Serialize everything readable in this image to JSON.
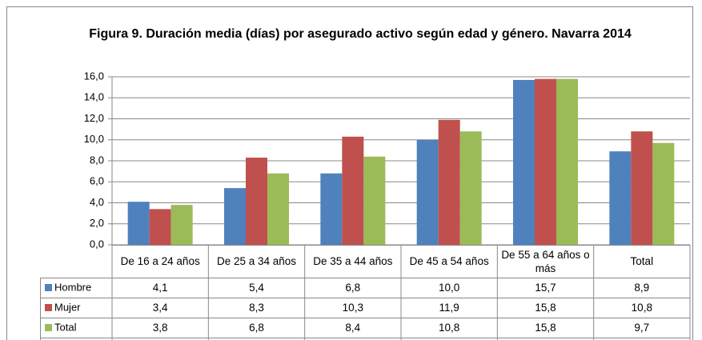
{
  "chart_data": {
    "type": "bar",
    "title": "Figura 9. Duración media (días) por asegurado activo según edad y género. Navarra 2014",
    "categories": [
      "De 16 a 24 años",
      "De 25 a 34 años",
      "De 35 a 44 años",
      "De 45 a 54 años",
      "De 55 a 64 años o más",
      "Total"
    ],
    "series": [
      {
        "name": "Hombre",
        "color": "#4f81bd",
        "values": [
          4.1,
          5.4,
          6.8,
          10.0,
          15.7,
          8.9
        ],
        "value_labels": [
          "4,1",
          "5,4",
          "6,8",
          "10,0",
          "15,7",
          "8,9"
        ]
      },
      {
        "name": "Mujer",
        "color": "#c0504d",
        "values": [
          3.4,
          8.3,
          10.3,
          11.9,
          15.8,
          10.8
        ],
        "value_labels": [
          "3,4",
          "8,3",
          "10,3",
          "11,9",
          "15,8",
          "10,8"
        ]
      },
      {
        "name": "Total",
        "color": "#9bbb59",
        "values": [
          3.8,
          6.8,
          8.4,
          10.8,
          15.8,
          9.7
        ],
        "value_labels": [
          "3,8",
          "6,8",
          "8,4",
          "10,8",
          "15,8",
          "9,7"
        ]
      }
    ],
    "ylim": [
      0,
      16
    ],
    "yticks": [
      {
        "value": 0,
        "label": "0,0"
      },
      {
        "value": 2,
        "label": "2,0"
      },
      {
        "value": 4,
        "label": "4,0"
      },
      {
        "value": 6,
        "label": "6,0"
      },
      {
        "value": 8,
        "label": "8,0"
      },
      {
        "value": 10,
        "label": "10,0"
      },
      {
        "value": 12,
        "label": "12,0"
      },
      {
        "value": 14,
        "label": "14,0"
      },
      {
        "value": 16,
        "label": "16,0"
      }
    ],
    "grid": true
  }
}
